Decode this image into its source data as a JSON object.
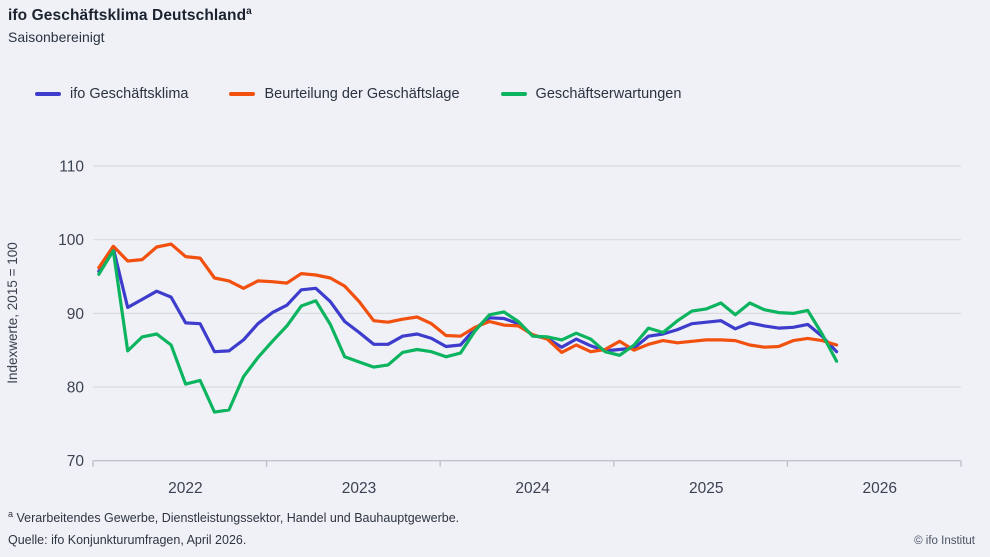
{
  "header": {
    "title": "ifo Geschäftsklima Deutschland",
    "title_superscript": "a",
    "subtitle": "Saisonbereinigt"
  },
  "legend": [
    {
      "label": "ifo Geschäftsklima",
      "color": "#3d3ccd"
    },
    {
      "label": "Beurteilung der Geschäftslage",
      "color": "#f2500f"
    },
    {
      "label": "Geschäftserwartungen",
      "color": "#0db45f"
    }
  ],
  "chart_data": {
    "type": "line",
    "title": "ifo Geschäftsklima Deutschland",
    "subtitle": "Saisonbereinigt",
    "ylabel": "Indexwerte, 2015 = 100",
    "ylim": [
      70,
      110
    ],
    "yticks": [
      70,
      80,
      90,
      100,
      110
    ],
    "grid": true,
    "legend_position": "top",
    "frequency": "monthly",
    "x_start": "2022-01",
    "x_end": "2026-04",
    "year_labels": [
      "2022",
      "2023",
      "2024",
      "2025",
      "2026"
    ],
    "series": [
      {
        "name": "ifo Geschäftsklima",
        "color": "#3d3ccd",
        "values": [
          95.7,
          98.8,
          90.8,
          91.9,
          93.0,
          92.2,
          88.7,
          88.6,
          84.8,
          84.9,
          86.4,
          88.6,
          90.1,
          91.1,
          93.2,
          93.4,
          91.6,
          88.9,
          87.4,
          85.8,
          85.8,
          86.9,
          87.2,
          86.6,
          85.5,
          85.7,
          87.9,
          89.4,
          89.3,
          88.6,
          87.0,
          86.6,
          85.4,
          86.5,
          85.6,
          84.9,
          85.1,
          85.3,
          86.9,
          87.2,
          87.8,
          88.6,
          88.8,
          89.0,
          87.9,
          88.7,
          88.3,
          88.0,
          88.1,
          88.5,
          86.9,
          84.8
        ]
      },
      {
        "name": "Beurteilung der Geschäftslage",
        "color": "#f2500f",
        "values": [
          96.2,
          99.1,
          97.1,
          97.3,
          99.0,
          99.4,
          97.7,
          97.5,
          94.8,
          94.4,
          93.4,
          94.4,
          94.3,
          94.1,
          95.4,
          95.2,
          94.8,
          93.7,
          91.6,
          89.0,
          88.8,
          89.2,
          89.5,
          88.6,
          87.0,
          86.9,
          88.1,
          88.9,
          88.4,
          88.3,
          87.1,
          86.5,
          84.7,
          85.7,
          84.8,
          85.1,
          86.2,
          85.0,
          85.8,
          86.3,
          86.0,
          86.2,
          86.4,
          86.4,
          86.3,
          85.7,
          85.4,
          85.5,
          86.3,
          86.6,
          86.3,
          85.7
        ]
      },
      {
        "name": "Geschäftserwartungen",
        "color": "#0db45f",
        "values": [
          95.3,
          98.5,
          84.9,
          86.8,
          87.2,
          85.7,
          80.4,
          80.9,
          76.6,
          76.9,
          81.4,
          84.0,
          86.2,
          88.3,
          91.0,
          91.7,
          88.5,
          84.1,
          83.4,
          82.7,
          83.0,
          84.7,
          85.1,
          84.8,
          84.1,
          84.6,
          87.6,
          89.8,
          90.2,
          88.9,
          86.9,
          86.8,
          86.4,
          87.3,
          86.5,
          84.8,
          84.3,
          85.7,
          88.0,
          87.4,
          89.0,
          90.3,
          90.6,
          91.4,
          89.8,
          91.4,
          90.5,
          90.1,
          90.0,
          90.4,
          87.2,
          83.5
        ]
      }
    ]
  },
  "footer": {
    "footnote_superscript": "a",
    "footnote": " Verarbeitendes Gewerbe, Dienstleistungssektor, Handel und Bauhauptgewerbe.",
    "source": "Quelle: ifo Konjunkturumfragen, April 2026.",
    "copyright": "© ifo Institut"
  },
  "style": {
    "background": "#eff1f6",
    "gridline_color": "#d9dbe0",
    "axis_color": "#bfc3cb",
    "tick_label_color": "#3b4252",
    "title_color": "#1b2330"
  }
}
